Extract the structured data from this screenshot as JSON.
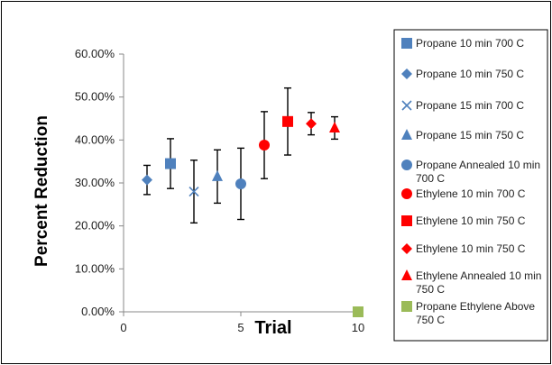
{
  "chart_data": {
    "type": "scatter",
    "xlabel": "Trial",
    "ylabel": "Percent Reduction",
    "xlim": [
      0,
      10
    ],
    "ylim": [
      0,
      0.6
    ],
    "x_ticks": [
      "0",
      "5",
      "10"
    ],
    "y_ticks": [
      "0.00%",
      "10.00%",
      "20.00%",
      "30.00%",
      "40.00%",
      "50.00%",
      "60.00%"
    ],
    "grid": false,
    "legend_position": "right",
    "series": [
      {
        "name": "Propane 10 min 700 C",
        "marker": "square",
        "color": "#4f81bd",
        "x": [
          2
        ],
        "y": [
          0.345
        ],
        "err_low": [
          0.058
        ],
        "err_high": [
          0.058
        ]
      },
      {
        "name": "Propane 10 min 750 C",
        "marker": "diamond",
        "color": "#4f81bd",
        "x": [
          1
        ],
        "y": [
          0.307
        ],
        "err_low": [
          0.034
        ],
        "err_high": [
          0.034
        ]
      },
      {
        "name": "Propane 15 min 700 C",
        "marker": "x",
        "color": "#4f81bd",
        "x": [
          3
        ],
        "y": [
          0.28
        ],
        "err_low": [
          0.073
        ],
        "err_high": [
          0.073
        ]
      },
      {
        "name": "Propane 15 min 750 C",
        "marker": "triangle",
        "color": "#4f81bd",
        "x": [
          4
        ],
        "y": [
          0.315
        ],
        "err_low": [
          0.062
        ],
        "err_high": [
          0.062
        ]
      },
      {
        "name": "Propane Annealed 10 min 700 C",
        "marker": "circle",
        "color": "#4f81bd",
        "x": [
          5
        ],
        "y": [
          0.298
        ],
        "err_low": [
          0.083
        ],
        "err_high": [
          0.083
        ]
      },
      {
        "name": "Ethylene 10 min 700 C",
        "marker": "circle",
        "color": "#ff0000",
        "x": [
          6
        ],
        "y": [
          0.388
        ],
        "err_low": [
          0.078
        ],
        "err_high": [
          0.078
        ]
      },
      {
        "name": "Ethylene 10 min 750 C",
        "marker": "square",
        "color": "#ff0000",
        "x": [
          7
        ],
        "y": [
          0.443
        ],
        "err_low": [
          0.078
        ],
        "err_high": [
          0.078
        ]
      },
      {
        "name": "Ethylene 10 min 750 C",
        "marker": "diamond",
        "color": "#ff0000",
        "x": [
          8
        ],
        "y": [
          0.438
        ],
        "err_low": [
          0.026
        ],
        "err_high": [
          0.026
        ]
      },
      {
        "name": "Ethylene Annealed 10 min 750 C",
        "marker": "triangle",
        "color": "#ff0000",
        "x": [
          9
        ],
        "y": [
          0.428
        ],
        "err_low": [
          0.026
        ],
        "err_high": [
          0.026
        ]
      },
      {
        "name": "Propane Ethylene Above 750 C",
        "marker": "square",
        "color": "#9bbb59",
        "x": [
          10
        ],
        "y": [
          0.0
        ],
        "err_low": [
          0
        ],
        "err_high": [
          0
        ]
      }
    ]
  }
}
